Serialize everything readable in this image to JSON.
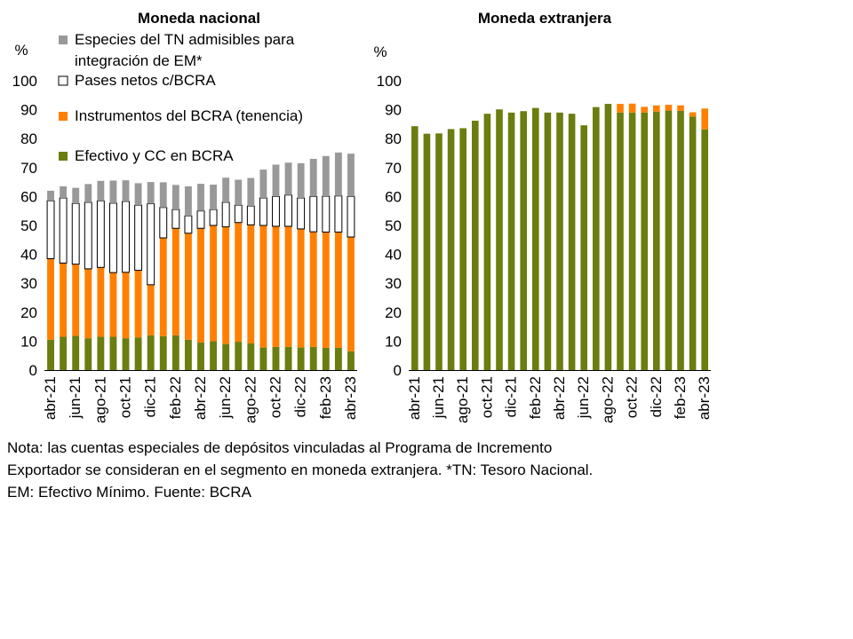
{
  "chart_data": [
    {
      "type": "bar",
      "stacked": true,
      "title": "Moneda nacional",
      "ylabel": "%",
      "ylim": [
        0,
        100
      ],
      "yticks": [
        0,
        10,
        20,
        30,
        40,
        50,
        60,
        70,
        80,
        90,
        100
      ],
      "categories": [
        "abr-21",
        "may-21",
        "jun-21",
        "jul-21",
        "ago-21",
        "sep-21",
        "oct-21",
        "nov-21",
        "dic-21",
        "ene-22",
        "feb-22",
        "mar-22",
        "abr-22",
        "may-22",
        "jun-22",
        "jul-22",
        "ago-22",
        "sep-22",
        "oct-22",
        "nov-22",
        "dic-22",
        "ene-23",
        "feb-23",
        "mar-23",
        "abr-23"
      ],
      "tick_labels": [
        "abr-21",
        "jun-21",
        "ago-21",
        "oct-21",
        "dic-21",
        "feb-22",
        "abr-22",
        "jun-22",
        "ago-22",
        "oct-22",
        "dic-22",
        "feb-23",
        "abr-23"
      ],
      "legend": "top-left",
      "series": [
        {
          "name": "Efectivo y CC en BCRA",
          "color": "#6b7d0f",
          "values": [
            10.5,
            11.5,
            11.8,
            11.0,
            11.5,
            11.5,
            11.0,
            11.3,
            12.0,
            11.7,
            12.0,
            10.5,
            9.5,
            10.0,
            9.0,
            9.8,
            9.2,
            7.8,
            8.0,
            8.0,
            7.8,
            8.0,
            7.7,
            7.7,
            6.5
          ]
        },
        {
          "name": "Instrumentos del BCRA (tenencia)",
          "color": "#ff8000",
          "values": [
            28.0,
            25.5,
            24.8,
            24.0,
            24.0,
            22.2,
            22.8,
            23.2,
            17.5,
            34.0,
            37.0,
            36.8,
            39.5,
            40.0,
            40.5,
            41.2,
            41.0,
            42.2,
            41.7,
            41.7,
            41.0,
            39.8,
            40.0,
            40.0,
            39.5
          ]
        },
        {
          "name": "Pases netos c/BCRA",
          "color": "#ffffff",
          "values": [
            20.0,
            22.5,
            21.0,
            23.0,
            23.0,
            24.0,
            24.5,
            22.5,
            28.0,
            10.5,
            6.5,
            6.0,
            6.0,
            5.5,
            8.5,
            6.0,
            6.5,
            9.5,
            10.3,
            10.8,
            10.7,
            12.2,
            12.4,
            12.5,
            14.0
          ]
        },
        {
          "name": "Especies del TN admisibles para integración de EM*",
          "color": "#999999",
          "values": [
            3.5,
            4.0,
            5.4,
            6.3,
            6.9,
            7.8,
            7.3,
            7.6,
            7.5,
            8.7,
            8.5,
            10.2,
            9.4,
            8.6,
            8.5,
            8.8,
            9.7,
            9.8,
            11.0,
            11.2,
            12.0,
            13.0,
            13.9,
            15.0,
            14.8
          ]
        }
      ]
    },
    {
      "type": "bar",
      "stacked": true,
      "title": "Moneda extranjera",
      "ylabel": "%",
      "ylim": [
        0,
        100
      ],
      "yticks": [
        0,
        10,
        20,
        30,
        40,
        50,
        60,
        70,
        80,
        90,
        100
      ],
      "categories": [
        "abr-21",
        "may-21",
        "jun-21",
        "jul-21",
        "ago-21",
        "sep-21",
        "oct-21",
        "nov-21",
        "dic-21",
        "ene-22",
        "feb-22",
        "mar-22",
        "abr-22",
        "may-22",
        "jun-22",
        "jul-22",
        "ago-22",
        "sep-22",
        "oct-22",
        "nov-22",
        "dic-22",
        "ene-23",
        "feb-23",
        "mar-23",
        "abr-23"
      ],
      "tick_labels": [
        "abr-21",
        "jun-21",
        "ago-21",
        "oct-21",
        "dic-21",
        "feb-22",
        "abr-22",
        "jun-22",
        "ago-22",
        "oct-22",
        "dic-22",
        "feb-23",
        "abr-23"
      ],
      "series": [
        {
          "name": "Efectivo y CC en BCRA",
          "color": "#6b7d0f",
          "values": [
            84.3,
            81.7,
            81.8,
            83.3,
            83.6,
            86.2,
            88.6,
            90.1,
            89.0,
            89.5,
            90.6,
            89.0,
            89.0,
            88.6,
            84.6,
            90.9,
            92.0,
            89.0,
            89.0,
            89.0,
            89.3,
            89.7,
            89.6,
            87.6,
            83.2
          ]
        },
        {
          "name": "Instrumentos del BCRA (tenencia)",
          "color": "#ff8000",
          "values": [
            0,
            0,
            0,
            0,
            0,
            0,
            0,
            0,
            0,
            0,
            0,
            0,
            0,
            0,
            0,
            0,
            0,
            3.0,
            3.1,
            2.0,
            2.2,
            2.0,
            1.9,
            1.5,
            7.2
          ]
        }
      ]
    }
  ],
  "note_lines": [
    "Nota: las cuentas especiales de depósitos vinculadas al Programa de Incremento",
    "Exportador se consideran en el segmento en moneda extranjera. *TN: Tesoro Nacional.",
    "EM: Efectivo Mínimo. Fuente: BCRA"
  ],
  "legend_lines": [
    [
      "Especies del TN admisibles para",
      "integración de EM*"
    ],
    [
      "Pases netos c/BCRA"
    ],
    [
      "Instrumentos del BCRA (tenencia)"
    ],
    [
      "Efectivo y CC en BCRA"
    ]
  ]
}
